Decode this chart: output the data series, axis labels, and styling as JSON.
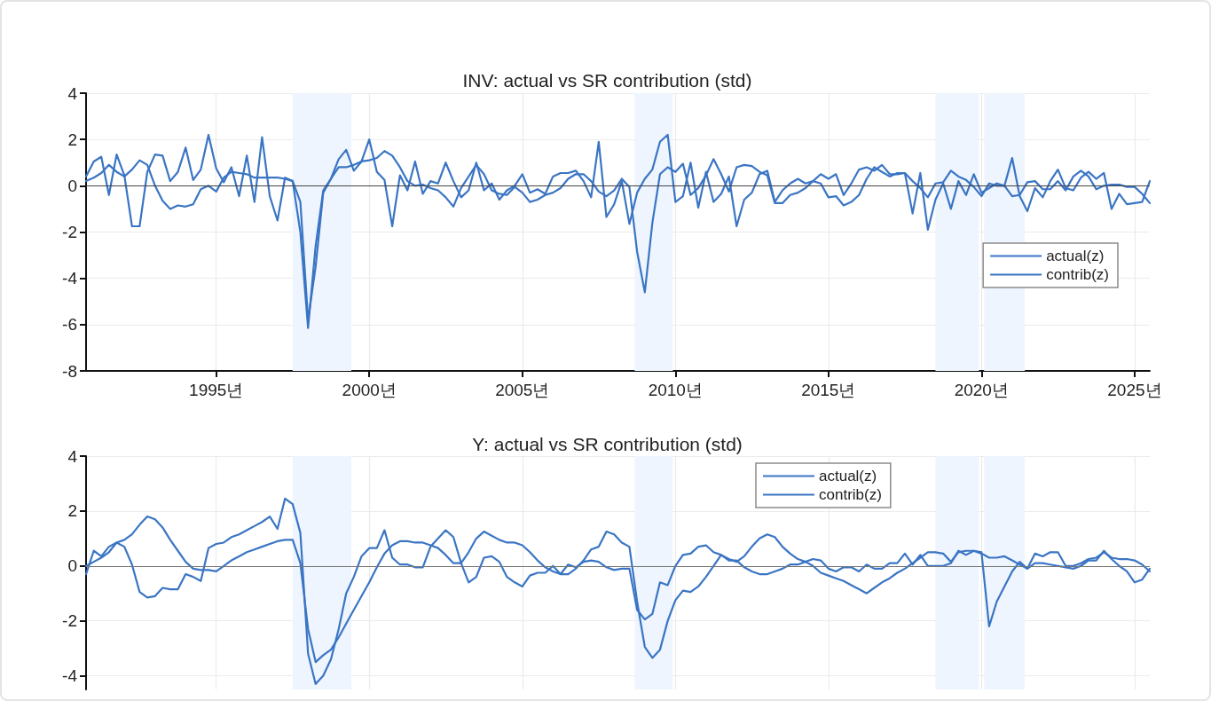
{
  "chart_data": [
    {
      "type": "line",
      "title": "INV: actual vs SR contribution (std)",
      "legend": "right",
      "grid": true,
      "marker": "none",
      "line_style": "solid",
      "x": [
        "1990-10",
        "1991-01",
        "1991-04",
        "1991-07",
        "1991-10",
        "1992-01",
        "1992-04",
        "1992-07",
        "1992-10",
        "1993-01",
        "1993-04",
        "1993-07",
        "1993-10",
        "1994-01",
        "1994-04",
        "1994-07",
        "1994-10",
        "1995-01",
        "1995-04",
        "1995-07",
        "1995-10",
        "1996-01",
        "1996-04",
        "1996-07",
        "1996-10",
        "1997-01",
        "1997-04",
        "1997-07",
        "1997-10",
        "1998-01",
        "1998-04",
        "1998-07",
        "1998-10",
        "1999-01",
        "1999-04",
        "1999-07",
        "1999-10",
        "2000-01",
        "2000-04",
        "2000-07",
        "2000-10",
        "2001-01",
        "2001-04",
        "2001-07",
        "2001-10",
        "2002-01",
        "2002-04",
        "2002-07",
        "2002-10",
        "2003-01",
        "2003-04",
        "2003-07",
        "2003-10",
        "2004-01",
        "2004-04",
        "2004-07",
        "2004-10",
        "2005-01",
        "2005-04",
        "2005-07",
        "2005-10",
        "2006-01",
        "2006-04",
        "2006-07",
        "2006-10",
        "2007-01",
        "2007-04",
        "2007-07",
        "2007-10",
        "2008-01",
        "2008-04",
        "2008-07",
        "2008-10",
        "2009-01",
        "2009-04",
        "2009-07",
        "2009-10",
        "2010-01",
        "2010-04",
        "2010-07",
        "2010-10",
        "2011-01",
        "2011-04",
        "2011-07",
        "2011-10",
        "2012-01",
        "2012-04",
        "2012-07",
        "2012-10",
        "2013-01",
        "2013-04",
        "2013-07",
        "2013-10",
        "2014-01",
        "2014-04",
        "2014-07",
        "2014-10",
        "2015-01",
        "2015-04",
        "2015-07",
        "2015-10",
        "2016-01",
        "2016-04",
        "2016-07",
        "2016-10",
        "2017-01",
        "2017-04",
        "2017-07",
        "2017-10",
        "2018-01",
        "2018-04",
        "2018-07",
        "2018-10",
        "2019-01",
        "2019-04",
        "2019-07",
        "2019-10",
        "2020-01",
        "2020-04",
        "2020-07",
        "2020-10",
        "2021-01",
        "2021-04",
        "2021-07",
        "2021-10",
        "2022-01",
        "2022-04",
        "2022-07",
        "2022-10",
        "2023-01",
        "2023-04",
        "2023-07",
        "2023-10",
        "2024-01",
        "2024-04",
        "2024-07",
        "2024-10",
        "2025-01",
        "2025-04",
        "2025-07"
      ],
      "xlim": [
        "1990-10",
        "2025-07"
      ],
      "xticks": [
        {
          "value": "1995",
          "label": "1995년"
        },
        {
          "value": "2000",
          "label": "2000년"
        },
        {
          "value": "2005",
          "label": "2005년"
        },
        {
          "value": "2010",
          "label": "2010년"
        },
        {
          "value": "2015",
          "label": "2015년"
        },
        {
          "value": "2020",
          "label": "2020년"
        },
        {
          "value": "2025",
          "label": "2025년"
        }
      ],
      "ylim": [
        -8,
        4
      ],
      "yticks": [
        -8,
        -6,
        -4,
        -2,
        0,
        2,
        4
      ],
      "ref_lines": [
        {
          "axis": "y",
          "value": 0,
          "color": "#444444"
        }
      ],
      "bands": [
        {
          "axis": "x",
          "from": "1997-07",
          "to": "1999-06",
          "color": "#eef5fe"
        },
        {
          "axis": "x",
          "from": "2008-09",
          "to": "2009-12",
          "color": "#eef5fe"
        },
        {
          "axis": "x",
          "from": "2018-07",
          "to": "2019-12",
          "color": "#eef5fe"
        },
        {
          "axis": "x",
          "from": "2020-02",
          "to": "2021-06",
          "color": "#eef5fe"
        }
      ],
      "series": [
        {
          "name": "actual(z)",
          "color": "#3a75c4",
          "values": [
            0.4,
            1.05,
            1.25,
            -0.4,
            1.35,
            0.45,
            -1.75,
            -1.75,
            0.6,
            1.35,
            1.3,
            0.2,
            0.6,
            1.65,
            0.25,
            0.7,
            2.2,
            0.75,
            0.15,
            0.8,
            -0.45,
            1.3,
            -0.7,
            2.1,
            -0.45,
            -1.5,
            0.35,
            0.2,
            -2.0,
            -6.15,
            -2.6,
            -0.2,
            0.3,
            1.15,
            1.55,
            0.65,
            1.05,
            2.0,
            0.6,
            0.25,
            -1.75,
            0.45,
            -0.2,
            1.05,
            -0.35,
            0.2,
            0.1,
            1.0,
            0.2,
            -0.5,
            -0.2,
            1.0,
            -0.2,
            0.1,
            -0.6,
            -0.2,
            0.0,
            0.5,
            -0.3,
            -0.15,
            -0.35,
            0.4,
            0.55,
            0.55,
            0.65,
            0.2,
            -0.5,
            1.9,
            -1.35,
            -0.8,
            0.2,
            -1.65,
            -0.3,
            0.3,
            0.7,
            1.9,
            2.2,
            -0.7,
            -0.45,
            1.0,
            -0.95,
            0.6,
            -0.7,
            -0.35,
            0.4,
            -1.75,
            -0.6,
            -0.3,
            0.5,
            0.65,
            -0.7,
            -0.2,
            0.1,
            0.3,
            0.1,
            0.2,
            0.5,
            0.3,
            0.5,
            -0.4,
            0.1,
            0.7,
            0.8,
            0.65,
            0.9,
            0.5,
            0.5,
            0.55,
            -1.2,
            0.55,
            -1.9,
            -0.6,
            0.1,
            -1.0,
            0.2,
            -0.4,
            0.5,
            -0.3,
            -0.1,
            0.1,
            0.0,
            1.2,
            -0.45,
            -1.1,
            -0.1,
            -0.5,
            0.2,
            0.7,
            -0.1,
            -0.2,
            0.35,
            0.6,
            0.3,
            0.55,
            -1.0,
            -0.35,
            -0.8,
            -0.75,
            -0.7,
            0.2
          ]
        },
        {
          "name": "contrib(z)",
          "color": "#3a75c4",
          "values": [
            0.2,
            0.35,
            0.55,
            0.9,
            0.6,
            0.4,
            0.7,
            1.1,
            0.9,
            0.0,
            -0.65,
            -1.0,
            -0.85,
            -0.9,
            -0.8,
            -0.15,
            0.0,
            -0.25,
            0.35,
            0.6,
            0.55,
            0.5,
            0.35,
            0.35,
            0.35,
            0.35,
            0.3,
            0.2,
            -0.7,
            -5.8,
            -3.5,
            -0.3,
            0.3,
            0.8,
            0.8,
            0.9,
            1.05,
            1.1,
            1.2,
            1.5,
            1.3,
            0.8,
            0.2,
            0.0,
            0.05,
            -0.1,
            -0.2,
            -0.5,
            -0.9,
            -0.1,
            0.4,
            0.9,
            0.5,
            -0.2,
            -0.35,
            -0.4,
            -0.05,
            -0.3,
            -0.7,
            -0.6,
            -0.4,
            -0.3,
            -0.1,
            0.3,
            0.5,
            0.5,
            0.2,
            -0.25,
            -0.45,
            -0.2,
            0.3,
            -0.05,
            -2.85,
            -4.6,
            -1.6,
            0.5,
            0.8,
            0.6,
            0.95,
            -0.4,
            -0.1,
            0.45,
            1.15,
            0.5,
            -0.25,
            0.8,
            0.9,
            0.85,
            0.6,
            0.45,
            -0.75,
            -0.75,
            -0.4,
            -0.3,
            -0.1,
            0.2,
            0.1,
            -0.5,
            -0.45,
            -0.85,
            -0.7,
            -0.4,
            0.3,
            0.8,
            0.6,
            0.4,
            0.55,
            0.55,
            0.2,
            -0.1,
            -0.5,
            0.1,
            0.15,
            0.65,
            0.4,
            0.25,
            -0.05,
            -0.45,
            0.1,
            0.0,
            0.0,
            -0.45,
            -0.4,
            0.15,
            0.2,
            -0.15,
            -0.15,
            0.2,
            -0.2,
            0.4,
            0.65,
            0.4,
            -0.15,
            0.0,
            0.05,
            0.05,
            -0.05,
            -0.05,
            -0.35,
            -0.75
          ]
        }
      ]
    },
    {
      "type": "line",
      "title": "Y: actual vs SR contribution (std)",
      "legend": "top",
      "grid": true,
      "marker": "none",
      "line_style": "solid",
      "tick_labels": "y",
      "x": [
        "1990-10",
        "1991-01",
        "1991-04",
        "1991-07",
        "1991-10",
        "1992-01",
        "1992-04",
        "1992-07",
        "1992-10",
        "1993-01",
        "1993-04",
        "1993-07",
        "1993-10",
        "1994-01",
        "1994-04",
        "1994-07",
        "1994-10",
        "1995-01",
        "1995-04",
        "1995-07",
        "1995-10",
        "1996-01",
        "1996-04",
        "1996-07",
        "1996-10",
        "1997-01",
        "1997-04",
        "1997-07",
        "1997-10",
        "1998-01",
        "1998-04",
        "1998-07",
        "1998-10",
        "1999-01",
        "1999-04",
        "1999-07",
        "1999-10",
        "2000-01",
        "2000-04",
        "2000-07",
        "2000-10",
        "2001-01",
        "2001-04",
        "2001-07",
        "2001-10",
        "2002-01",
        "2002-04",
        "2002-07",
        "2002-10",
        "2003-01",
        "2003-04",
        "2003-07",
        "2003-10",
        "2004-01",
        "2004-04",
        "2004-07",
        "2004-10",
        "2005-01",
        "2005-04",
        "2005-07",
        "2005-10",
        "2006-01",
        "2006-04",
        "2006-07",
        "2006-10",
        "2007-01",
        "2007-04",
        "2007-07",
        "2007-10",
        "2008-01",
        "2008-04",
        "2008-07",
        "2008-10",
        "2009-01",
        "2009-04",
        "2009-07",
        "2009-10",
        "2010-01",
        "2010-04",
        "2010-07",
        "2010-10",
        "2011-01",
        "2011-04",
        "2011-07",
        "2011-10",
        "2012-01",
        "2012-04",
        "2012-07",
        "2012-10",
        "2013-01",
        "2013-04",
        "2013-07",
        "2013-10",
        "2014-01",
        "2014-04",
        "2014-07",
        "2014-10",
        "2015-01",
        "2015-04",
        "2015-07",
        "2015-10",
        "2016-01",
        "2016-04",
        "2016-07",
        "2016-10",
        "2017-01",
        "2017-04",
        "2017-07",
        "2017-10",
        "2018-01",
        "2018-04",
        "2018-07",
        "2018-10",
        "2019-01",
        "2019-04",
        "2019-07",
        "2019-10",
        "2020-01",
        "2020-04",
        "2020-07",
        "2020-10",
        "2021-01",
        "2021-04",
        "2021-07",
        "2021-10",
        "2022-01",
        "2022-04",
        "2022-07",
        "2022-10",
        "2023-01",
        "2023-04",
        "2023-07",
        "2023-10",
        "2024-01",
        "2024-04",
        "2024-07",
        "2024-10",
        "2025-01",
        "2025-04",
        "2025-07"
      ],
      "xlim": [
        "1990-10",
        "2025-07"
      ],
      "xticks": [
        {
          "value": "1995",
          "label": null
        },
        {
          "value": "2000",
          "label": null
        },
        {
          "value": "2005",
          "label": null
        },
        {
          "value": "2010",
          "label": null
        },
        {
          "value": "2015",
          "label": null
        },
        {
          "value": "2020",
          "label": null
        },
        {
          "value": "2025",
          "label": null
        }
      ],
      "ylim": [
        -4.5,
        4
      ],
      "yticks": [
        -4,
        -2,
        0,
        2,
        4
      ],
      "ref_lines": [
        {
          "axis": "y",
          "value": 0,
          "color": "#777777"
        }
      ],
      "bands": [
        {
          "axis": "x",
          "from": "1997-07",
          "to": "1999-06",
          "color": "#eef5fe"
        },
        {
          "axis": "x",
          "from": "2008-09",
          "to": "2009-12",
          "color": "#eef5fe"
        },
        {
          "axis": "x",
          "from": "2018-07",
          "to": "2019-12",
          "color": "#eef5fe"
        },
        {
          "axis": "x",
          "from": "2020-02",
          "to": "2021-06",
          "color": "#eef5fe"
        }
      ],
      "series": [
        {
          "name": "actual(z)",
          "color": "#3a75c4",
          "values": [
            -0.3,
            0.55,
            0.35,
            0.7,
            0.85,
            0.7,
            0.05,
            -0.95,
            -1.15,
            -1.1,
            -0.8,
            -0.85,
            -0.85,
            -0.3,
            -0.4,
            -0.55,
            0.65,
            0.8,
            0.85,
            1.05,
            1.15,
            1.3,
            1.45,
            1.6,
            1.8,
            1.35,
            2.45,
            2.25,
            1.2,
            -3.2,
            -4.3,
            -4.0,
            -3.4,
            -2.3,
            -1.0,
            -0.4,
            0.35,
            0.65,
            0.65,
            1.3,
            0.3,
            0.05,
            0.05,
            -0.05,
            -0.05,
            0.7,
            1.0,
            1.3,
            1.05,
            0.1,
            -0.6,
            -0.4,
            0.3,
            0.35,
            0.15,
            -0.4,
            -0.6,
            -0.75,
            -0.35,
            -0.25,
            -0.25,
            0.0,
            -0.3,
            0.05,
            -0.05,
            0.15,
            0.2,
            0.15,
            -0.05,
            -0.15,
            -0.1,
            -0.1,
            -1.6,
            -1.95,
            -1.75,
            -0.6,
            -0.7,
            0.0,
            0.4,
            0.45,
            0.7,
            0.75,
            0.5,
            0.4,
            0.2,
            0.2,
            -0.05,
            -0.2,
            -0.3,
            -0.3,
            -0.2,
            -0.1,
            0.05,
            0.05,
            0.15,
            0.25,
            0.2,
            -0.1,
            -0.2,
            -0.05,
            -0.05,
            -0.2,
            0.05,
            -0.1,
            -0.1,
            0.1,
            0.1,
            0.45,
            0.05,
            0.4,
            0.0,
            0.0,
            0.0,
            0.1,
            0.55,
            0.4,
            0.55,
            0.5,
            -2.2,
            -1.3,
            -0.75,
            -0.2,
            0.15,
            -0.1,
            0.1,
            0.1,
            0.05,
            0.0,
            -0.05,
            -0.1,
            0.0,
            0.2,
            0.2,
            0.55,
            0.25,
            0.0,
            -0.2,
            -0.6,
            -0.5,
            -0.1
          ]
        },
        {
          "name": "contrib(z)",
          "color": "#3a75c4",
          "values": [
            0.0,
            0.15,
            0.3,
            0.5,
            0.85,
            0.95,
            1.15,
            1.5,
            1.8,
            1.7,
            1.4,
            0.95,
            0.55,
            0.15,
            -0.1,
            -0.15,
            -0.15,
            -0.2,
            0.0,
            0.2,
            0.35,
            0.5,
            0.6,
            0.7,
            0.8,
            0.9,
            0.95,
            0.95,
            0.1,
            -2.3,
            -3.5,
            -3.25,
            -3.05,
            -2.6,
            -2.1,
            -1.6,
            -1.1,
            -0.6,
            -0.05,
            0.45,
            0.75,
            0.9,
            0.9,
            0.85,
            0.85,
            0.75,
            0.65,
            0.4,
            0.1,
            0.1,
            0.5,
            1.0,
            1.25,
            1.1,
            0.95,
            0.85,
            0.85,
            0.75,
            0.5,
            0.2,
            -0.05,
            -0.2,
            -0.3,
            -0.3,
            -0.1,
            0.2,
            0.6,
            0.7,
            1.25,
            1.15,
            0.85,
            0.7,
            -1.3,
            -2.95,
            -3.35,
            -3.05,
            -2.0,
            -1.25,
            -0.9,
            -0.95,
            -0.75,
            -0.4,
            0.0,
            0.4,
            0.25,
            0.15,
            0.35,
            0.7,
            1.0,
            1.15,
            1.05,
            0.7,
            0.45,
            0.25,
            0.15,
            0.0,
            -0.25,
            -0.35,
            -0.45,
            -0.55,
            -0.7,
            -0.85,
            -1.0,
            -0.8,
            -0.6,
            -0.45,
            -0.25,
            -0.1,
            0.1,
            0.3,
            0.5,
            0.5,
            0.45,
            0.15,
            0.5,
            0.55,
            0.55,
            0.45,
            0.3,
            0.3,
            0.35,
            0.2,
            0.05,
            -0.1,
            0.45,
            0.35,
            0.5,
            0.5,
            0.0,
            0.0,
            0.1,
            0.25,
            0.3,
            0.5,
            0.3,
            0.25,
            0.25,
            0.2,
            0.05,
            -0.2
          ]
        }
      ]
    }
  ]
}
